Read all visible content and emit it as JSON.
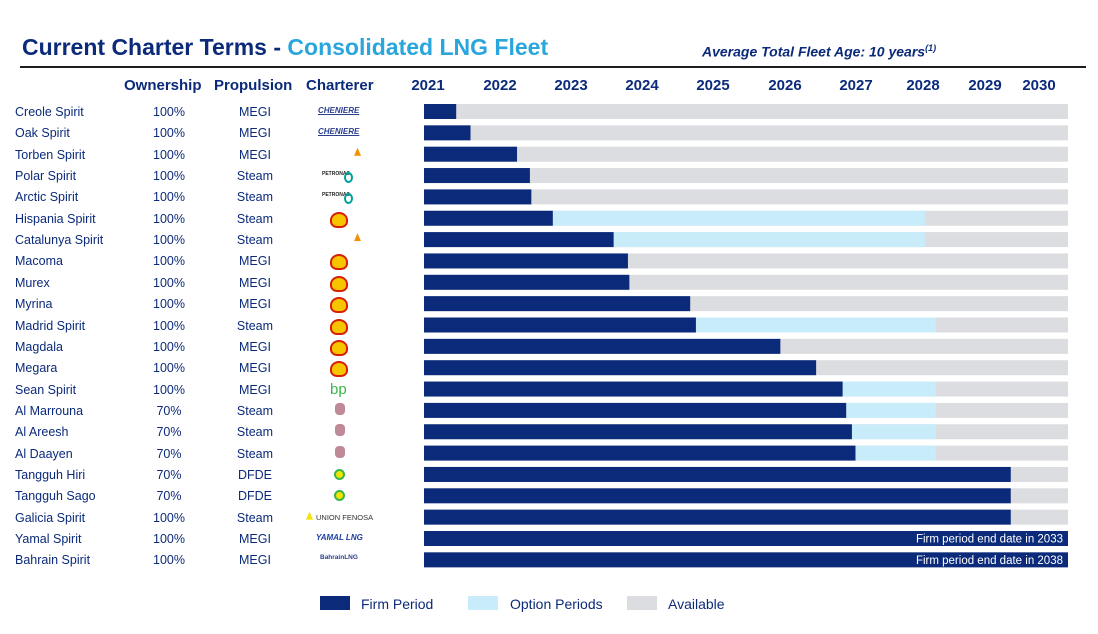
{
  "header": {
    "title_main": "Current Charter Terms - ",
    "title_accent": "Consolidated LNG Fleet",
    "fleet_age": "Average Total Fleet Age: 10 years",
    "fleet_age_note": "(1)"
  },
  "columns": {
    "ownership": "Ownership",
    "propulsion": "Propulsion",
    "charterer": "Charterer"
  },
  "colors": {
    "firm": "#0b2a7a",
    "option": "#c9ecfb",
    "available": "#dcdde0"
  },
  "chart_data": {
    "type": "bar",
    "orientation": "horizontal-timeline",
    "years": [
      "2021",
      "2022",
      "2023",
      "2024",
      "2025",
      "2026",
      "2027",
      "2028",
      "2029",
      "2030"
    ],
    "xlim": [
      2021.0,
      2030.0
    ],
    "series": [
      {
        "name": "Firm Period",
        "color": "#0b2a7a"
      },
      {
        "name": "Option Periods",
        "color": "#c9ecfb"
      },
      {
        "name": "Available",
        "color": "#dcdde0"
      }
    ],
    "rows": [
      {
        "vessel": "Creole Spirit",
        "ownership": "100%",
        "propulsion": "MEGI",
        "charterer": "CHENIERE",
        "logo": "cheniere-logo",
        "firm_end": 2021.45,
        "option_end": null
      },
      {
        "vessel": "Oak Spirit",
        "ownership": "100%",
        "propulsion": "MEGI",
        "charterer": "CHENIERE",
        "logo": "cheniere-logo",
        "firm_end": 2021.65,
        "option_end": null
      },
      {
        "vessel": "Torben Spirit",
        "ownership": "100%",
        "propulsion": "MEGI",
        "charterer": "",
        "logo": "gas-natural-fenosa-logo",
        "firm_end": 2022.3,
        "option_end": null
      },
      {
        "vessel": "Polar Spirit",
        "ownership": "100%",
        "propulsion": "Steam",
        "charterer": "PETRONAS",
        "logo": "petronas-logo",
        "firm_end": 2022.48,
        "option_end": null
      },
      {
        "vessel": "Arctic Spirit",
        "ownership": "100%",
        "propulsion": "Steam",
        "charterer": "PETRONAS",
        "logo": "petronas-logo",
        "firm_end": 2022.5,
        "option_end": null
      },
      {
        "vessel": "Hispania Spirit",
        "ownership": "100%",
        "propulsion": "Steam",
        "charterer": "",
        "logo": "shell-logo",
        "firm_end": 2022.8,
        "option_end": 2028.0
      },
      {
        "vessel": "Catalunya Spirit",
        "ownership": "100%",
        "propulsion": "Steam",
        "charterer": "",
        "logo": "gas-natural-fenosa-logo",
        "firm_end": 2023.65,
        "option_end": 2028.0
      },
      {
        "vessel": "Macoma",
        "ownership": "100%",
        "propulsion": "MEGI",
        "charterer": "",
        "logo": "shell-logo",
        "firm_end": 2023.85,
        "option_end": null
      },
      {
        "vessel": "Murex",
        "ownership": "100%",
        "propulsion": "MEGI",
        "charterer": "",
        "logo": "shell-logo",
        "firm_end": 2023.87,
        "option_end": null
      },
      {
        "vessel": "Myrina",
        "ownership": "100%",
        "propulsion": "MEGI",
        "charterer": "",
        "logo": "shell-logo",
        "firm_end": 2024.72,
        "option_end": null
      },
      {
        "vessel": "Madrid Spirit",
        "ownership": "100%",
        "propulsion": "Steam",
        "charterer": "",
        "logo": "shell-logo",
        "firm_end": 2024.8,
        "option_end": 2028.15
      },
      {
        "vessel": "Magdala",
        "ownership": "100%",
        "propulsion": "MEGI",
        "charterer": "",
        "logo": "shell-logo",
        "firm_end": 2025.98,
        "option_end": null
      },
      {
        "vessel": "Megara",
        "ownership": "100%",
        "propulsion": "MEGI",
        "charterer": "",
        "logo": "shell-logo",
        "firm_end": 2026.48,
        "option_end": null
      },
      {
        "vessel": "Sean Spirit",
        "ownership": "100%",
        "propulsion": "MEGI",
        "charterer": "bp",
        "logo": "bp-logo",
        "firm_end": 2026.85,
        "option_end": 2028.15
      },
      {
        "vessel": "Al Marrouna",
        "ownership": "70%",
        "propulsion": "Steam",
        "charterer": "",
        "logo": "qatar-logo",
        "firm_end": 2026.9,
        "option_end": 2028.15
      },
      {
        "vessel": "Al Areesh",
        "ownership": "70%",
        "propulsion": "Steam",
        "charterer": "",
        "logo": "qatar-logo",
        "firm_end": 2026.98,
        "option_end": 2028.15
      },
      {
        "vessel": "Al Daayen",
        "ownership": "70%",
        "propulsion": "Steam",
        "charterer": "",
        "logo": "qatar-logo",
        "firm_end": 2027.03,
        "option_end": 2028.15
      },
      {
        "vessel": "Tangguh Hiri",
        "ownership": "70%",
        "propulsion": "DFDE",
        "charterer": "",
        "logo": "bp-helios-logo",
        "firm_end": 2029.2,
        "option_end": null
      },
      {
        "vessel": "Tangguh Sago",
        "ownership": "70%",
        "propulsion": "DFDE",
        "charterer": "",
        "logo": "bp-helios-logo",
        "firm_end": 2029.2,
        "option_end": null
      },
      {
        "vessel": "Galicia Spirit",
        "ownership": "100%",
        "propulsion": "Steam",
        "charterer": "UNION FENOSA",
        "logo": "union-fenosa-logo",
        "firm_end": 2029.2,
        "option_end": null
      },
      {
        "vessel": "Yamal Spirit",
        "ownership": "100%",
        "propulsion": "MEGI",
        "charterer": "YAMAL LNG",
        "logo": "yamal-lng-logo",
        "firm_end": 2030.0,
        "option_end": null,
        "note": "Firm period end date in 2033"
      },
      {
        "vessel": "Bahrain Spirit",
        "ownership": "100%",
        "propulsion": "MEGI",
        "charterer": "BahrainLNG",
        "logo": "bahrain-lng-logo",
        "firm_end": 2030.0,
        "option_end": null,
        "note": "Firm period end date in 2038"
      }
    ],
    "legend": [
      "Firm Period",
      "Option Periods",
      "Available"
    ],
    "legend_position": "bottom-center"
  }
}
